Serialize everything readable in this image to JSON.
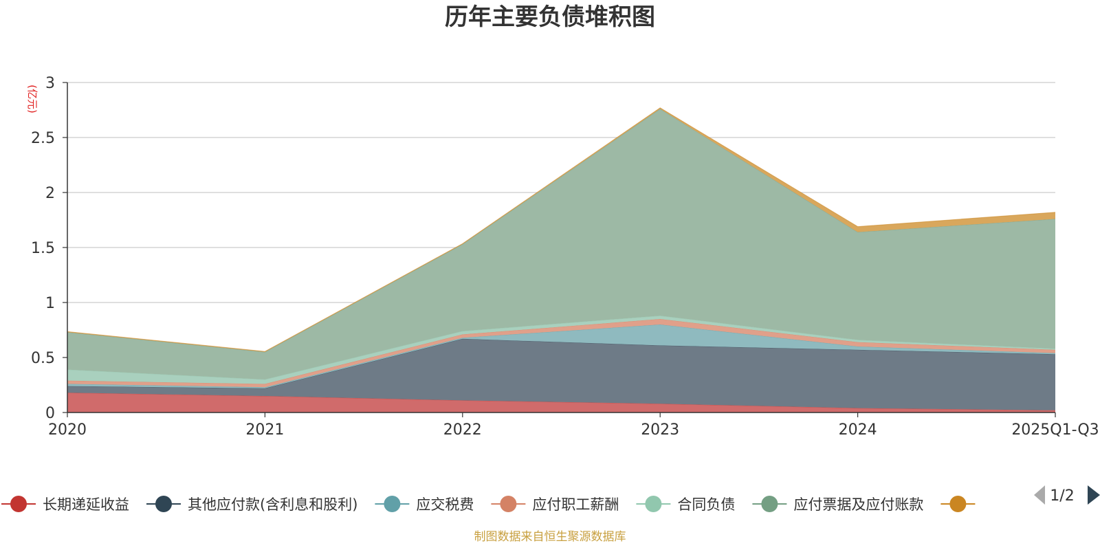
{
  "chart_data": {
    "type": "area",
    "stacked": true,
    "title": "历年主要负债堆积图",
    "unit_label": "(亿元)",
    "categories": [
      "2020",
      "2021",
      "2022",
      "2023",
      "2024",
      "2025Q1-Q3"
    ],
    "ylim": [
      0,
      3
    ],
    "yticks": [
      "0",
      "0.5",
      "1",
      "1.5",
      "2",
      "2.5",
      "3"
    ],
    "ytick_values": [
      0,
      0.5,
      1,
      1.5,
      2,
      2.5,
      3
    ],
    "grid": true,
    "legend_position": "bottom",
    "series": [
      {
        "name": "长期递延收益",
        "color": "#d06b6b",
        "marker": "#c23531",
        "values": [
          0.18,
          0.15,
          0.11,
          0.08,
          0.04,
          0.02
        ]
      },
      {
        "name": "其他应付款(含利息和股利)",
        "color": "#6e7b87",
        "marker": "#2f4554",
        "values": [
          0.06,
          0.07,
          0.56,
          0.53,
          0.53,
          0.51
        ]
      },
      {
        "name": "应交税费",
        "color": "#8fbabf",
        "marker": "#61a0a8",
        "values": [
          0.02,
          0.01,
          0.01,
          0.19,
          0.03,
          0.01
        ]
      },
      {
        "name": "应付职工薪酬",
        "color": "#e0a08a",
        "marker": "#d48265",
        "values": [
          0.03,
          0.03,
          0.03,
          0.05,
          0.04,
          0.03
        ]
      },
      {
        "name": "合同负债",
        "color": "#a9d0be",
        "marker": "#91c7ae",
        "values": [
          0.1,
          0.04,
          0.03,
          0.03,
          0.02,
          0.01
        ]
      },
      {
        "name": "应付票据及应付账款",
        "color": "#9db9a5",
        "marker": "#749f83",
        "values": [
          0.34,
          0.25,
          0.79,
          1.88,
          0.98,
          1.18
        ]
      },
      {
        "name": "",
        "color": "#d9a75c",
        "marker": "#ca8622",
        "values": [
          0.005,
          0.005,
          0.005,
          0.01,
          0.05,
          0.06
        ]
      }
    ]
  },
  "legend": {
    "page_indicator": "1/2"
  },
  "footer": {
    "source": "制图数据来自恒生聚源数据库"
  }
}
